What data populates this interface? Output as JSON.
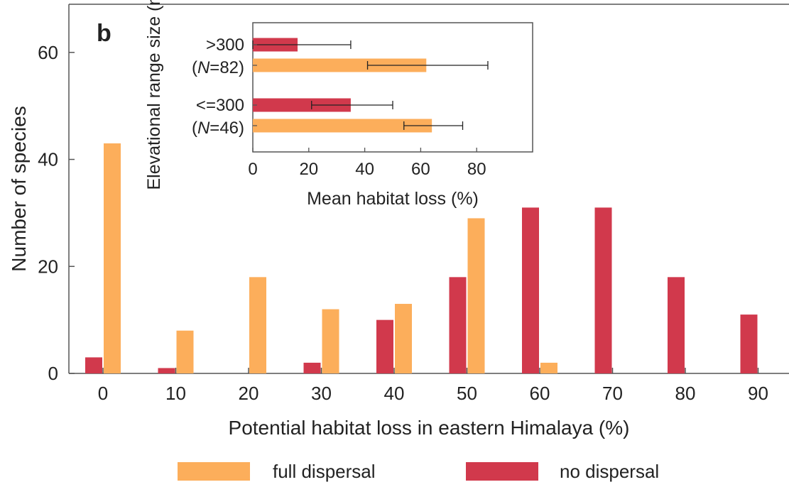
{
  "panel_label": "b",
  "legend": [
    {
      "label": "full dispersal",
      "color": "#FCAE5B"
    },
    {
      "label": "no dispersal",
      "color": "#D1394C"
    }
  ],
  "chart_data": [
    {
      "type": "bar",
      "xlabel": "Potential habitat loss in eastern Himalaya (%)",
      "ylabel": "Number of species",
      "categories": [
        "0",
        "10",
        "20",
        "30",
        "40",
        "50",
        "60",
        "70",
        "80",
        "90"
      ],
      "series": [
        {
          "name": "no dispersal",
          "color": "#D1394C",
          "values": [
            3,
            1,
            0,
            2,
            10,
            18,
            31,
            31,
            18,
            11
          ]
        },
        {
          "name": "full dispersal",
          "color": "#FCAE5B",
          "values": [
            43,
            8,
            18,
            12,
            13,
            29,
            2,
            0,
            0,
            0
          ]
        }
      ],
      "xticks": [
        "0",
        "10",
        "20",
        "30",
        "40",
        "50",
        "60",
        "70",
        "80",
        "90"
      ],
      "yticks": [
        "0",
        "20",
        "40",
        "60"
      ],
      "ylim": [
        0,
        69
      ],
      "grid": false,
      "legend_position": "bottom"
    },
    {
      "type": "bar",
      "orientation": "horizontal",
      "xlabel": "Mean habitat loss (%)",
      "ylabel": "Elevational range size (m)",
      "group_labels": [
        {
          "line1": ">300",
          "n_prefix": "(",
          "n_italic": "N",
          "n_suffix": "=82)"
        },
        {
          "line1": "<=300",
          "n_prefix": "(",
          "n_italic": "N",
          "n_suffix": "=46)"
        }
      ],
      "series": [
        {
          "name": "no dispersal",
          "color": "#D1394C",
          "values": [
            16,
            35
          ],
          "error_low": [
            0,
            21
          ],
          "error_high": [
            35,
            50
          ]
        },
        {
          "name": "full dispersal",
          "color": "#FCAE5B",
          "values": [
            62,
            64
          ],
          "error_low": [
            41,
            54
          ],
          "error_high": [
            84,
            75
          ]
        }
      ],
      "xticks": [
        "0",
        "20",
        "40",
        "60",
        "80"
      ],
      "xlim": [
        0,
        100
      ],
      "grid": false
    }
  ]
}
